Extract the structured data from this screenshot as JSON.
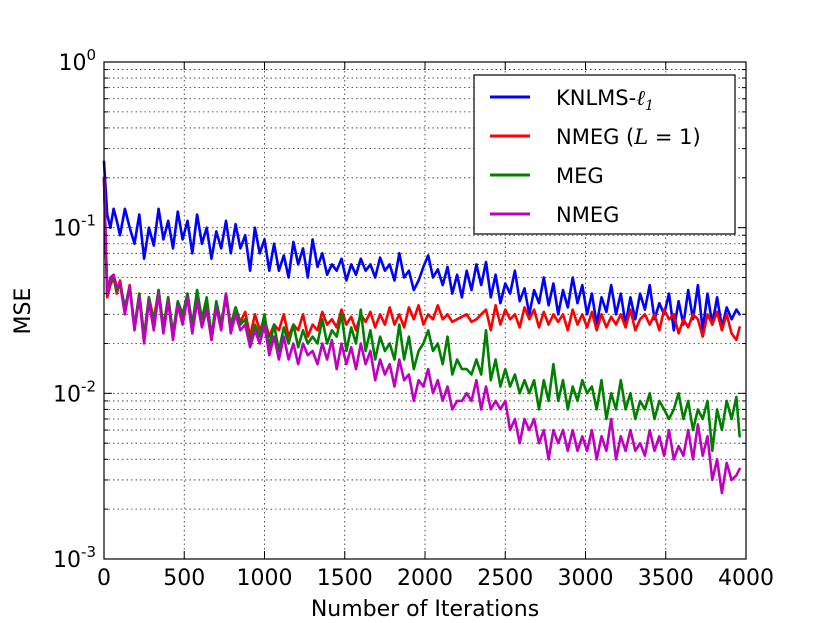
{
  "chart_data": {
    "type": "line",
    "title": "",
    "xlabel": "Number of Iterations",
    "ylabel": "MSE",
    "xlim": [
      0,
      4000
    ],
    "ylim": [
      0.001,
      1
    ],
    "yscale": "log",
    "grid": true,
    "legend_position": "top-right",
    "x_ticks": [
      {
        "value": 0,
        "label": "0"
      },
      {
        "value": 500,
        "label": "500"
      },
      {
        "value": 1000,
        "label": "1000"
      },
      {
        "value": 1500,
        "label": "1500"
      },
      {
        "value": 2000,
        "label": "2000"
      },
      {
        "value": 2500,
        "label": "2500"
      },
      {
        "value": 3000,
        "label": "3000"
      },
      {
        "value": 3500,
        "label": "3500"
      },
      {
        "value": 4000,
        "label": "4000"
      }
    ],
    "y_ticks": [
      {
        "value": 0.001,
        "base": "10",
        "exp": "-3"
      },
      {
        "value": 0.01,
        "base": "10",
        "exp": "-2"
      },
      {
        "value": 0.1,
        "base": "10",
        "exp": "-1"
      },
      {
        "value": 1,
        "base": "10",
        "exp": "0"
      }
    ],
    "series": [
      {
        "name": "KNLMS-ℓ1",
        "legend_text": "KNLMS-",
        "legend_math": "ℓ",
        "legend_sub": "1",
        "color": "#0000ff",
        "x": [
          0,
          20,
          40,
          60,
          80,
          100,
          130,
          160,
          190,
          220,
          250,
          280,
          310,
          340,
          370,
          400,
          430,
          460,
          490,
          520,
          550,
          580,
          610,
          640,
          670,
          700,
          730,
          760,
          790,
          820,
          850,
          880,
          910,
          940,
          970,
          1000,
          1030,
          1060,
          1090,
          1120,
          1150,
          1180,
          1210,
          1240,
          1270,
          1300,
          1330,
          1360,
          1390,
          1420,
          1450,
          1480,
          1510,
          1540,
          1570,
          1600,
          1630,
          1660,
          1690,
          1720,
          1750,
          1780,
          1810,
          1840,
          1870,
          1900,
          1930,
          1960,
          1990,
          2020,
          2050,
          2080,
          2110,
          2140,
          2170,
          2200,
          2230,
          2260,
          2290,
          2320,
          2350,
          2380,
          2410,
          2440,
          2470,
          2500,
          2530,
          2560,
          2590,
          2620,
          2650,
          2680,
          2710,
          2740,
          2770,
          2800,
          2830,
          2860,
          2890,
          2920,
          2950,
          2980,
          3010,
          3040,
          3070,
          3100,
          3130,
          3160,
          3190,
          3220,
          3250,
          3280,
          3310,
          3340,
          3370,
          3400,
          3430,
          3460,
          3490,
          3520,
          3550,
          3580,
          3610,
          3640,
          3670,
          3700,
          3730,
          3760,
          3790,
          3820,
          3850,
          3880,
          3910,
          3940,
          3960
        ],
        "y": [
          0.25,
          0.12,
          0.1,
          0.13,
          0.11,
          0.09,
          0.13,
          0.1,
          0.08,
          0.12,
          0.065,
          0.1,
          0.078,
          0.13,
          0.085,
          0.11,
          0.075,
          0.125,
          0.085,
          0.11,
          0.07,
          0.12,
          0.08,
          0.1,
          0.065,
          0.095,
          0.075,
          0.11,
          0.07,
          0.105,
          0.075,
          0.09,
          0.055,
          0.1,
          0.07,
          0.085,
          0.055,
          0.08,
          0.055,
          0.068,
          0.05,
          0.082,
          0.06,
          0.075,
          0.05,
          0.085,
          0.058,
          0.07,
          0.052,
          0.06,
          0.055,
          0.065,
          0.048,
          0.06,
          0.052,
          0.065,
          0.055,
          0.06,
          0.05,
          0.066,
          0.055,
          0.06,
          0.048,
          0.07,
          0.05,
          0.055,
          0.042,
          0.048,
          0.058,
          0.068,
          0.05,
          0.056,
          0.045,
          0.058,
          0.04,
          0.052,
          0.038,
          0.055,
          0.042,
          0.06,
          0.045,
          0.062,
          0.038,
          0.052,
          0.035,
          0.046,
          0.04,
          0.055,
          0.036,
          0.043,
          0.03,
          0.042,
          0.035,
          0.05,
          0.034,
          0.046,
          0.03,
          0.042,
          0.033,
          0.05,
          0.035,
          0.045,
          0.03,
          0.04,
          0.026,
          0.038,
          0.031,
          0.045,
          0.03,
          0.04,
          0.026,
          0.038,
          0.028,
          0.04,
          0.032,
          0.045,
          0.028,
          0.035,
          0.03,
          0.04,
          0.024,
          0.036,
          0.026,
          0.042,
          0.028,
          0.045,
          0.024,
          0.04,
          0.026,
          0.038,
          0.025,
          0.033,
          0.028,
          0.032,
          0.03
        ]
      },
      {
        "name": "NMEG (L=1)",
        "legend_text": "NMEG (",
        "legend_math": "L",
        "legend_after": " = 1)",
        "color": "#ff0000",
        "x": [
          0,
          20,
          40,
          60,
          80,
          100,
          130,
          160,
          190,
          220,
          250,
          280,
          310,
          340,
          370,
          400,
          430,
          460,
          490,
          520,
          550,
          580,
          610,
          640,
          670,
          700,
          730,
          760,
          790,
          820,
          850,
          880,
          910,
          940,
          970,
          1000,
          1030,
          1060,
          1090,
          1120,
          1150,
          1180,
          1210,
          1240,
          1270,
          1300,
          1330,
          1360,
          1390,
          1420,
          1450,
          1480,
          1510,
          1540,
          1570,
          1600,
          1630,
          1660,
          1690,
          1720,
          1750,
          1780,
          1810,
          1840,
          1870,
          1900,
          1930,
          1960,
          1990,
          2020,
          2050,
          2080,
          2110,
          2140,
          2170,
          2200,
          2230,
          2260,
          2290,
          2320,
          2350,
          2380,
          2410,
          2440,
          2470,
          2500,
          2530,
          2560,
          2590,
          2620,
          2650,
          2680,
          2710,
          2740,
          2770,
          2800,
          2830,
          2860,
          2890,
          2920,
          2950,
          2980,
          3010,
          3040,
          3070,
          3100,
          3130,
          3160,
          3190,
          3220,
          3250,
          3280,
          3310,
          3340,
          3370,
          3400,
          3430,
          3460,
          3490,
          3520,
          3550,
          3580,
          3610,
          3640,
          3670,
          3700,
          3730,
          3760,
          3790,
          3820,
          3850,
          3880,
          3910,
          3940,
          3960
        ],
        "y": [
          0.2,
          0.038,
          0.045,
          0.05,
          0.04,
          0.048,
          0.032,
          0.045,
          0.025,
          0.04,
          0.022,
          0.038,
          0.028,
          0.042,
          0.025,
          0.038,
          0.022,
          0.035,
          0.028,
          0.04,
          0.024,
          0.038,
          0.028,
          0.035,
          0.021,
          0.033,
          0.027,
          0.037,
          0.026,
          0.033,
          0.027,
          0.031,
          0.022,
          0.03,
          0.024,
          0.028,
          0.022,
          0.026,
          0.024,
          0.03,
          0.022,
          0.026,
          0.024,
          0.03,
          0.022,
          0.026,
          0.024,
          0.031,
          0.026,
          0.028,
          0.025,
          0.032,
          0.026,
          0.029,
          0.024,
          0.03,
          0.027,
          0.031,
          0.025,
          0.03,
          0.026,
          0.033,
          0.026,
          0.03,
          0.025,
          0.033,
          0.028,
          0.034,
          0.026,
          0.03,
          0.028,
          0.034,
          0.028,
          0.03,
          0.027,
          0.028,
          0.029,
          0.03,
          0.027,
          0.028,
          0.03,
          0.032,
          0.024,
          0.034,
          0.026,
          0.032,
          0.028,
          0.03,
          0.025,
          0.033,
          0.028,
          0.032,
          0.025,
          0.031,
          0.026,
          0.03,
          0.027,
          0.03,
          0.024,
          0.032,
          0.026,
          0.03,
          0.025,
          0.031,
          0.024,
          0.03,
          0.025,
          0.029,
          0.026,
          0.03,
          0.025,
          0.032,
          0.024,
          0.028,
          0.03,
          0.026,
          0.03,
          0.024,
          0.032,
          0.028,
          0.03,
          0.023,
          0.028,
          0.025,
          0.03,
          0.028,
          0.022,
          0.03,
          0.026,
          0.031,
          0.024,
          0.03,
          0.023,
          0.021,
          0.025
        ]
      },
      {
        "name": "MEG",
        "legend_text": "MEG",
        "color": "#008000",
        "x": [
          0,
          20,
          40,
          60,
          80,
          100,
          130,
          160,
          190,
          220,
          250,
          280,
          310,
          340,
          370,
          400,
          430,
          460,
          490,
          520,
          550,
          580,
          610,
          640,
          670,
          700,
          730,
          760,
          790,
          820,
          850,
          880,
          910,
          940,
          970,
          1000,
          1030,
          1060,
          1090,
          1120,
          1150,
          1180,
          1210,
          1240,
          1270,
          1300,
          1330,
          1360,
          1390,
          1420,
          1450,
          1480,
          1510,
          1540,
          1570,
          1600,
          1630,
          1660,
          1690,
          1720,
          1750,
          1780,
          1810,
          1840,
          1870,
          1900,
          1930,
          1960,
          1990,
          2020,
          2050,
          2080,
          2110,
          2140,
          2170,
          2200,
          2230,
          2260,
          2290,
          2320,
          2350,
          2380,
          2410,
          2440,
          2470,
          2500,
          2530,
          2560,
          2590,
          2620,
          2650,
          2680,
          2710,
          2740,
          2770,
          2800,
          2830,
          2860,
          2890,
          2920,
          2950,
          2980,
          3010,
          3040,
          3070,
          3100,
          3130,
          3160,
          3190,
          3220,
          3250,
          3280,
          3310,
          3340,
          3370,
          3400,
          3430,
          3460,
          3490,
          3520,
          3550,
          3580,
          3610,
          3640,
          3670,
          3700,
          3730,
          3760,
          3790,
          3820,
          3850,
          3880,
          3910,
          3940,
          3960
        ],
        "y": [
          0.2,
          0.04,
          0.048,
          0.05,
          0.042,
          0.046,
          0.033,
          0.044,
          0.025,
          0.04,
          0.022,
          0.038,
          0.026,
          0.042,
          0.025,
          0.038,
          0.023,
          0.036,
          0.03,
          0.04,
          0.026,
          0.042,
          0.028,
          0.038,
          0.022,
          0.036,
          0.026,
          0.04,
          0.025,
          0.033,
          0.026,
          0.028,
          0.02,
          0.026,
          0.022,
          0.03,
          0.019,
          0.026,
          0.018,
          0.025,
          0.02,
          0.026,
          0.019,
          0.024,
          0.02,
          0.022,
          0.02,
          0.028,
          0.02,
          0.024,
          0.022,
          0.03,
          0.018,
          0.025,
          0.02,
          0.032,
          0.018,
          0.024,
          0.016,
          0.022,
          0.018,
          0.02,
          0.016,
          0.026,
          0.016,
          0.022,
          0.014,
          0.018,
          0.02,
          0.024,
          0.018,
          0.02,
          0.015,
          0.022,
          0.013,
          0.016,
          0.014,
          0.014,
          0.013,
          0.016,
          0.013,
          0.024,
          0.012,
          0.016,
          0.011,
          0.014,
          0.011,
          0.013,
          0.01,
          0.012,
          0.01,
          0.012,
          0.008,
          0.012,
          0.009,
          0.015,
          0.009,
          0.012,
          0.008,
          0.011,
          0.009,
          0.012,
          0.01,
          0.011,
          0.008,
          0.012,
          0.007,
          0.01,
          0.008,
          0.012,
          0.008,
          0.01,
          0.007,
          0.009,
          0.008,
          0.01,
          0.007,
          0.009,
          0.008,
          0.007,
          0.008,
          0.01,
          0.007,
          0.009,
          0.006,
          0.008,
          0.007,
          0.009,
          0.0045,
          0.008,
          0.006,
          0.009,
          0.007,
          0.0095,
          0.0055
        ]
      },
      {
        "name": "NMEG",
        "legend_text": "NMEG",
        "color": "#bf00bf",
        "x": [
          0,
          20,
          40,
          60,
          80,
          100,
          130,
          160,
          190,
          220,
          250,
          280,
          310,
          340,
          370,
          400,
          430,
          460,
          490,
          520,
          550,
          580,
          610,
          640,
          670,
          700,
          730,
          760,
          790,
          820,
          850,
          880,
          910,
          940,
          970,
          1000,
          1030,
          1060,
          1090,
          1120,
          1150,
          1180,
          1210,
          1240,
          1270,
          1300,
          1330,
          1360,
          1390,
          1420,
          1450,
          1480,
          1510,
          1540,
          1570,
          1600,
          1630,
          1660,
          1690,
          1720,
          1750,
          1780,
          1810,
          1840,
          1870,
          1900,
          1930,
          1960,
          1990,
          2020,
          2050,
          2080,
          2110,
          2140,
          2170,
          2200,
          2230,
          2260,
          2290,
          2320,
          2350,
          2380,
          2410,
          2440,
          2470,
          2500,
          2530,
          2560,
          2590,
          2620,
          2650,
          2680,
          2710,
          2740,
          2770,
          2800,
          2830,
          2860,
          2890,
          2920,
          2950,
          2980,
          3010,
          3040,
          3070,
          3100,
          3130,
          3160,
          3190,
          3220,
          3250,
          3280,
          3310,
          3340,
          3370,
          3400,
          3430,
          3460,
          3490,
          3520,
          3550,
          3580,
          3610,
          3640,
          3670,
          3700,
          3730,
          3760,
          3790,
          3820,
          3850,
          3880,
          3910,
          3940,
          3960
        ],
        "y": [
          0.2,
          0.04,
          0.05,
          0.052,
          0.044,
          0.046,
          0.03,
          0.044,
          0.024,
          0.038,
          0.02,
          0.036,
          0.024,
          0.04,
          0.023,
          0.036,
          0.021,
          0.034,
          0.026,
          0.038,
          0.023,
          0.036,
          0.025,
          0.032,
          0.021,
          0.033,
          0.024,
          0.04,
          0.023,
          0.03,
          0.024,
          0.026,
          0.019,
          0.024,
          0.02,
          0.026,
          0.017,
          0.022,
          0.016,
          0.022,
          0.016,
          0.02,
          0.015,
          0.02,
          0.017,
          0.018,
          0.015,
          0.02,
          0.016,
          0.021,
          0.014,
          0.02,
          0.015,
          0.019,
          0.014,
          0.02,
          0.015,
          0.018,
          0.012,
          0.016,
          0.013,
          0.015,
          0.011,
          0.016,
          0.012,
          0.013,
          0.009,
          0.012,
          0.011,
          0.014,
          0.01,
          0.012,
          0.009,
          0.011,
          0.008,
          0.009,
          0.009,
          0.01,
          0.009,
          0.012,
          0.008,
          0.011,
          0.008,
          0.009,
          0.008,
          0.009,
          0.006,
          0.007,
          0.005,
          0.007,
          0.006,
          0.007,
          0.005,
          0.006,
          0.004,
          0.006,
          0.005,
          0.006,
          0.0045,
          0.006,
          0.0045,
          0.0055,
          0.0045,
          0.006,
          0.004,
          0.0055,
          0.0045,
          0.007,
          0.004,
          0.0055,
          0.0045,
          0.006,
          0.0045,
          0.005,
          0.0042,
          0.006,
          0.0045,
          0.0055,
          0.0042,
          0.006,
          0.004,
          0.0048,
          0.0042,
          0.006,
          0.004,
          0.0065,
          0.0042,
          0.0055,
          0.003,
          0.004,
          0.0025,
          0.0038,
          0.003,
          0.0032,
          0.0035
        ]
      }
    ]
  }
}
